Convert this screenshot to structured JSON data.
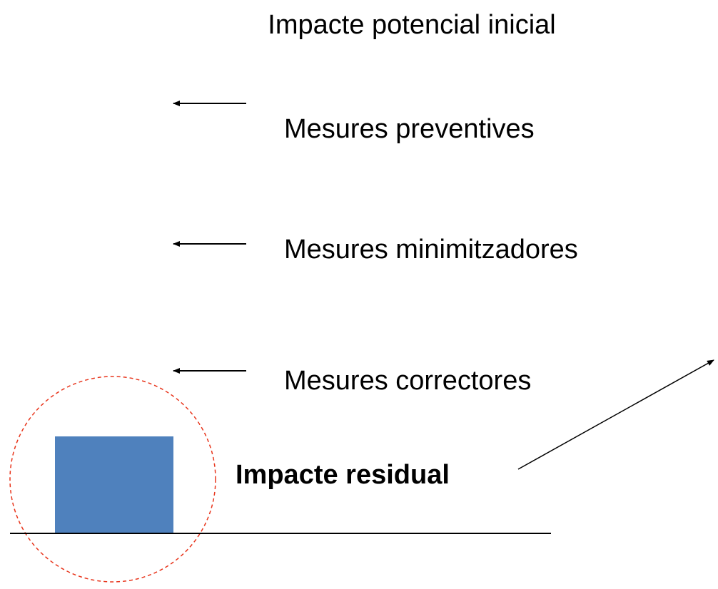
{
  "title": "Impacte potencial inicial",
  "steps": [
    "Mesures preventives",
    "Mesures minimitzadores",
    "Mesures correctores"
  ],
  "result": "Impacte residual"
}
